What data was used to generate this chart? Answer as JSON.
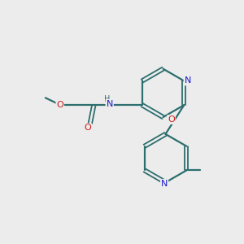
{
  "bg_color": "#ececec",
  "bond_color": "#2d6e6e",
  "atom_colors": {
    "N": "#1a1acc",
    "O": "#cc1a1a",
    "C": "#2d6e6e"
  },
  "figsize": [
    3.0,
    3.0
  ],
  "dpi": 100
}
